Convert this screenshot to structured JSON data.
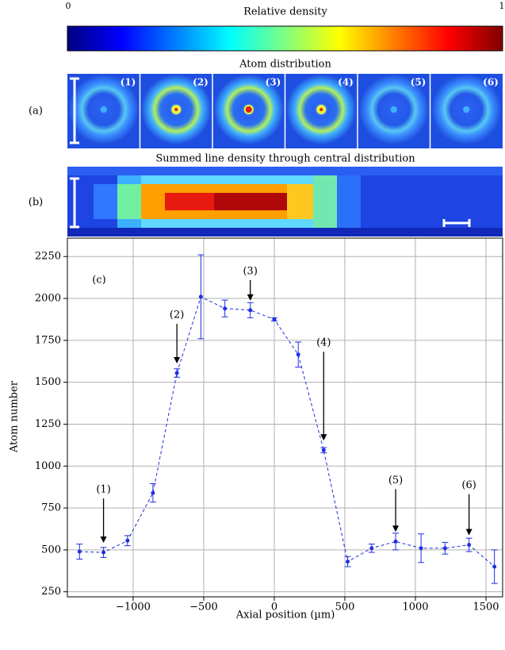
{
  "colorbar": {
    "label": "Relative density",
    "min": 0,
    "max": 1
  },
  "panel_a": {
    "title": "Atom distribution",
    "label": "(a)",
    "tiles": [
      "(1)",
      "(2)",
      "(3)",
      "(4)",
      "(5)",
      "(6)"
    ]
  },
  "panel_b": {
    "title": "Summed line density through central distribution",
    "label": "(b)"
  },
  "chart_data": {
    "type": "line",
    "label": "(c)",
    "x_label": "Axial position (µm)",
    "y_label": "Atom number",
    "x": [
      -1380,
      -1210,
      -1040,
      -860,
      -690,
      -520,
      -350,
      -170,
      0,
      170,
      350,
      520,
      690,
      860,
      1040,
      1210,
      1380,
      1560
    ],
    "series": [
      {
        "color": "#1f2fe0",
        "values": [
          490,
          485,
          555,
          840,
          1555,
          2010,
          1940,
          1930,
          1875,
          1665,
          1095,
          430,
          510,
          550,
          510,
          510,
          530,
          400
        ],
        "errors": [
          45,
          30,
          30,
          55,
          25,
          250,
          50,
          45,
          10,
          75,
          15,
          30,
          25,
          50,
          85,
          35,
          40,
          100
        ]
      }
    ],
    "annotations": [
      {
        "text": "(1)",
        "x": -1210
      },
      {
        "text": "(2)",
        "x": -690
      },
      {
        "text": "(3)",
        "x": -170
      },
      {
        "text": "(4)",
        "x": 350
      },
      {
        "text": "(5)",
        "x": 860
      },
      {
        "text": "(6)",
        "x": 1380
      }
    ],
    "xlim": [
      -1466,
      1618
    ],
    "ylim": [
      220,
      2360
    ],
    "xticks": [
      {
        "value": -1000,
        "label": "−1000"
      },
      {
        "value": -500,
        "label": "−500"
      },
      0,
      500,
      1000,
      1500
    ],
    "yticks": [
      250,
      500,
      750,
      1000,
      1250,
      1500,
      1750,
      2000,
      2250
    ],
    "grid": true
  }
}
